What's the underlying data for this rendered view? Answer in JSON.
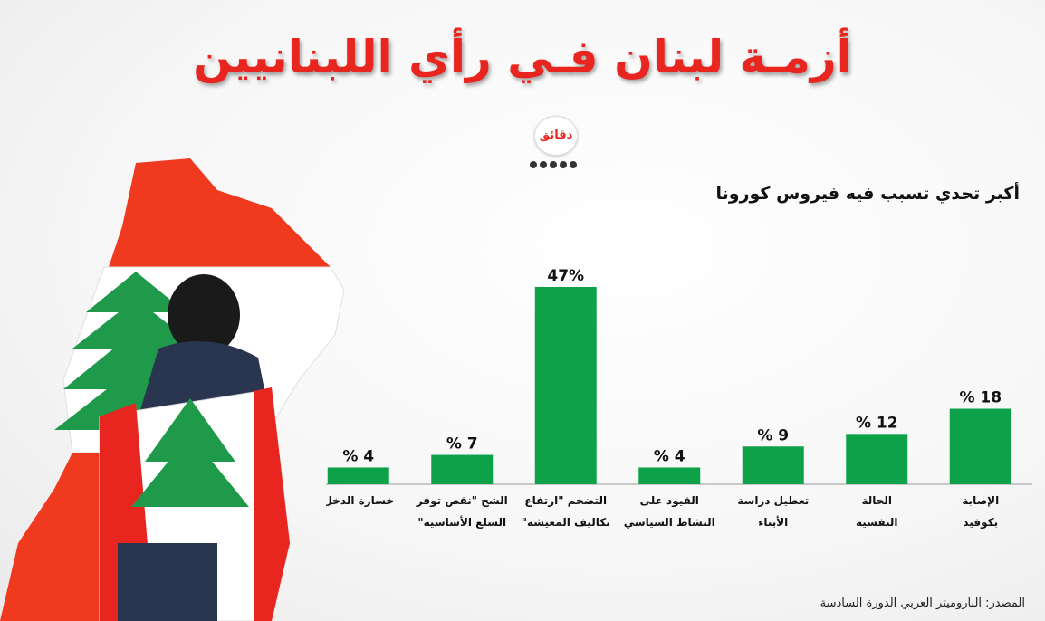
{
  "title": "أزمـة لبنان فـي رأي اللبنانيين",
  "logo_text": "دقائق",
  "subtitle": "أكبر تحدي تسبب فيه فيروس كورونا",
  "source": "المصدر: الباروميتر العربي الدورة السادسة",
  "colors": {
    "title": "#e8251f",
    "bar": "#0da14a",
    "flag_red": "#f03a1f",
    "cedar": "#1f9a4a"
  },
  "chart_data": {
    "type": "bar",
    "title": "أكبر تحدي تسبب فيه فيروس كورونا",
    "xlabel": "",
    "ylabel": "",
    "ylim": [
      0,
      47
    ],
    "categories": [
      [
        "الإصابة",
        "بكوفيد"
      ],
      [
        "الحالة",
        "النفسية"
      ],
      [
        "تعطيل دراسة",
        "الأبناء"
      ],
      [
        "القيود على",
        "النشاط السياسي"
      ],
      [
        "التضخم \"ارتفاع",
        "تكاليف المعيشة\""
      ],
      [
        "الشح \"نقص توفر",
        "السلع الأساسية\""
      ],
      [
        "خسارة الدخل"
      ]
    ],
    "values": [
      18,
      12,
      9,
      4,
      47,
      7,
      4
    ],
    "value_labels": [
      "% 18",
      "% 12",
      "% 9",
      "% 4",
      "47%",
      "% 7",
      "% 4"
    ]
  }
}
